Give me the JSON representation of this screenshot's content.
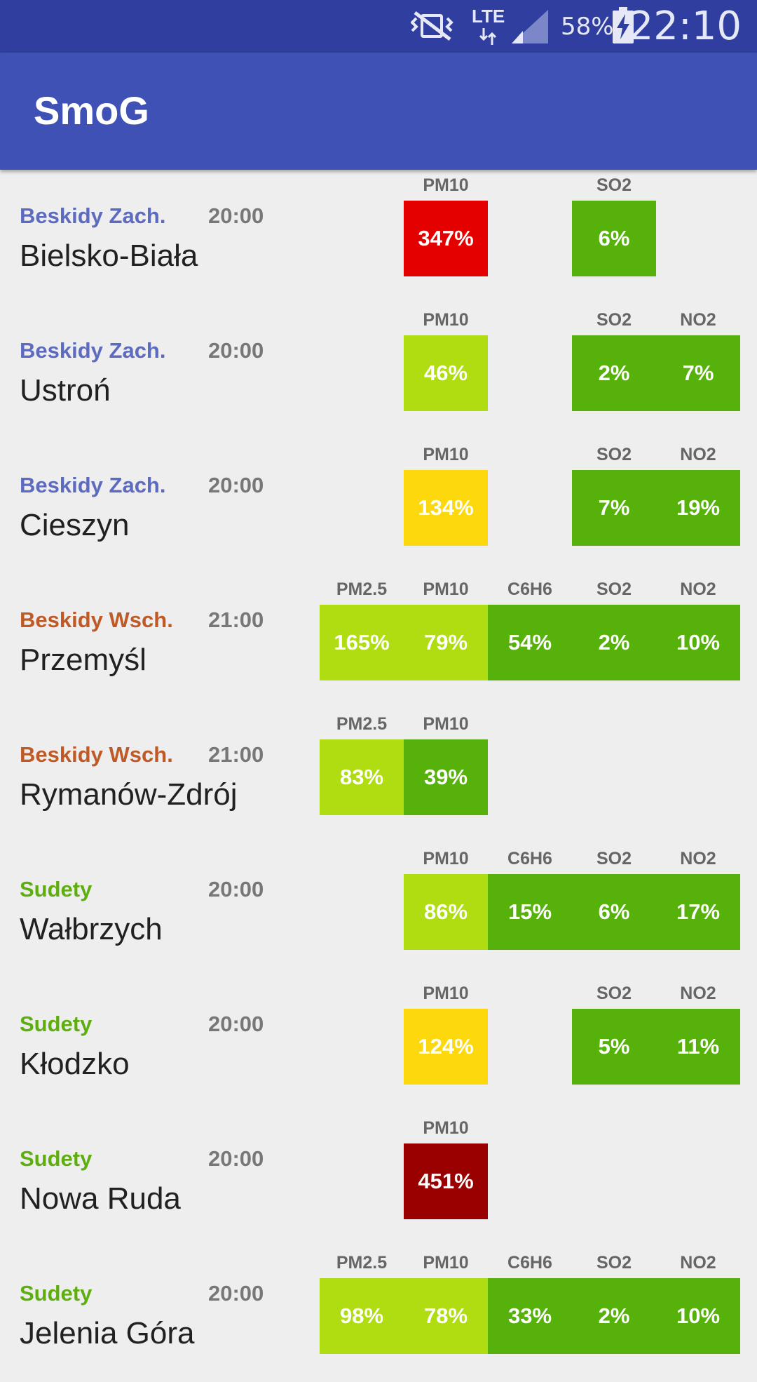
{
  "status_bar": {
    "network": "LTE",
    "battery": "58%",
    "time": "22:10",
    "icons": [
      "vibrate-mute-icon",
      "lte-data-icon",
      "signal-icon",
      "battery-charging-icon"
    ]
  },
  "app": {
    "title": "SmoG"
  },
  "colors": {
    "status_bar": "#303f9f",
    "app_bar": "#3f51b5",
    "region_beskidy_zach": "#5c6bc0",
    "region_beskidy_wsch": "#bf5a26",
    "region_sudety": "#5fae10",
    "level_very_good": "#57b10b",
    "level_good": "#b0dd12",
    "level_moderate": "#fcd80c",
    "level_bad": "#e50000",
    "level_very_bad": "#990000"
  },
  "stations": [
    {
      "region": "Beskidy Zach.",
      "region_color": "#5c6bc0",
      "time": "20:00",
      "city": "Bielsko-Biała",
      "measurements": [
        {
          "col": 1,
          "label": "PM10",
          "value": "347%",
          "color": "#e50000"
        },
        {
          "col": 3,
          "label": "SO2",
          "value": "6%",
          "color": "#57b10b"
        }
      ]
    },
    {
      "region": "Beskidy Zach.",
      "region_color": "#5c6bc0",
      "time": "20:00",
      "city": "Ustroń",
      "measurements": [
        {
          "col": 1,
          "label": "PM10",
          "value": "46%",
          "color": "#b0dd12"
        },
        {
          "col": 3,
          "label": "SO2",
          "value": "2%",
          "color": "#57b10b"
        },
        {
          "col": 4,
          "label": "NO2",
          "value": "7%",
          "color": "#57b10b"
        }
      ]
    },
    {
      "region": "Beskidy Zach.",
      "region_color": "#5c6bc0",
      "time": "20:00",
      "city": "Cieszyn",
      "measurements": [
        {
          "col": 1,
          "label": "PM10",
          "value": "134%",
          "color": "#fcd80c"
        },
        {
          "col": 3,
          "label": "SO2",
          "value": "7%",
          "color": "#57b10b"
        },
        {
          "col": 4,
          "label": "NO2",
          "value": "19%",
          "color": "#57b10b"
        }
      ]
    },
    {
      "region": "Beskidy Wsch.",
      "region_color": "#bf5a26",
      "time": "21:00",
      "city": "Przemyśl",
      "measurements": [
        {
          "col": 0,
          "label": "PM2.5",
          "value": "165%",
          "color": "#b0dd12"
        },
        {
          "col": 1,
          "label": "PM10",
          "value": "79%",
          "color": "#b0dd12"
        },
        {
          "col": 2,
          "label": "C6H6",
          "value": "54%",
          "color": "#57b10b"
        },
        {
          "col": 3,
          "label": "SO2",
          "value": "2%",
          "color": "#57b10b"
        },
        {
          "col": 4,
          "label": "NO2",
          "value": "10%",
          "color": "#57b10b"
        }
      ]
    },
    {
      "region": "Beskidy Wsch.",
      "region_color": "#bf5a26",
      "time": "21:00",
      "city": "Rymanów-Zdrój",
      "measurements": [
        {
          "col": 0,
          "label": "PM2.5",
          "value": "83%",
          "color": "#b0dd12"
        },
        {
          "col": 1,
          "label": "PM10",
          "value": "39%",
          "color": "#57b10b"
        }
      ]
    },
    {
      "region": "Sudety",
      "region_color": "#5fae10",
      "time": "20:00",
      "city": "Wałbrzych",
      "measurements": [
        {
          "col": 1,
          "label": "PM10",
          "value": "86%",
          "color": "#b0dd12"
        },
        {
          "col": 2,
          "label": "C6H6",
          "value": "15%",
          "color": "#57b10b"
        },
        {
          "col": 3,
          "label": "SO2",
          "value": "6%",
          "color": "#57b10b"
        },
        {
          "col": 4,
          "label": "NO2",
          "value": "17%",
          "color": "#57b10b"
        }
      ]
    },
    {
      "region": "Sudety",
      "region_color": "#5fae10",
      "time": "20:00",
      "city": "Kłodzko",
      "measurements": [
        {
          "col": 1,
          "label": "PM10",
          "value": "124%",
          "color": "#fcd80c"
        },
        {
          "col": 3,
          "label": "SO2",
          "value": "5%",
          "color": "#57b10b"
        },
        {
          "col": 4,
          "label": "NO2",
          "value": "11%",
          "color": "#57b10b"
        }
      ]
    },
    {
      "region": "Sudety",
      "region_color": "#5fae10",
      "time": "20:00",
      "city": "Nowa Ruda",
      "measurements": [
        {
          "col": 1,
          "label": "PM10",
          "value": "451%",
          "color": "#990000"
        }
      ]
    },
    {
      "region": "Sudety",
      "region_color": "#5fae10",
      "time": "20:00",
      "city": "Jelenia Góra",
      "measurements": [
        {
          "col": 0,
          "label": "PM2.5",
          "value": "98%",
          "color": "#b0dd12"
        },
        {
          "col": 1,
          "label": "PM10",
          "value": "78%",
          "color": "#b0dd12"
        },
        {
          "col": 2,
          "label": "C6H6",
          "value": "33%",
          "color": "#57b10b"
        },
        {
          "col": 3,
          "label": "SO2",
          "value": "2%",
          "color": "#57b10b"
        },
        {
          "col": 4,
          "label": "NO2",
          "value": "10%",
          "color": "#57b10b"
        }
      ]
    }
  ]
}
